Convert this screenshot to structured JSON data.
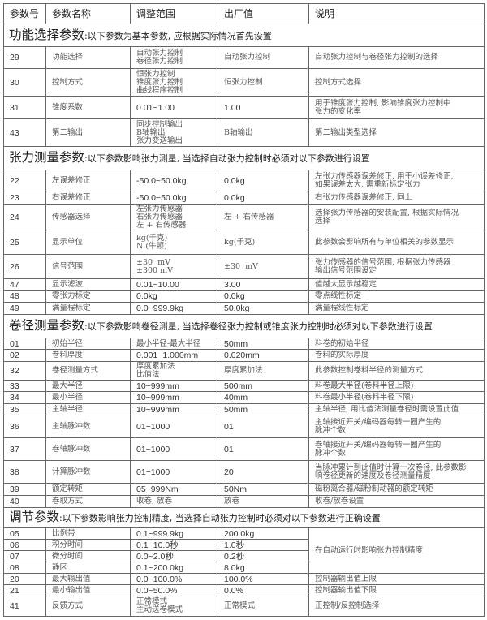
{
  "header": [
    "参数号",
    "参数名称",
    "调整范围",
    "出厂值",
    "说明"
  ],
  "sections": [
    {
      "title": "功能选择参数",
      "desc": ":以下参数为基本参数, 应根据实际情况首先设置",
      "rows": [
        {
          "no": "29",
          "name": "功能选择",
          "range": [
            "自动张力控制",
            "卷径张力控制"
          ],
          "default": [
            "自动张力控制"
          ],
          "desc": [
            "自动张力控制与卷径张力控制的选择"
          ]
        },
        {
          "no": "30",
          "name": "控制方式",
          "range": [
            "恒张力控制",
            "锥度张力控制",
            "曲线程序控制"
          ],
          "default": [
            "恒张力控制"
          ],
          "desc": [
            "控制方式选择"
          ]
        },
        {
          "no": "31",
          "name": "锥度系数",
          "range": [
            "0.01~1.00"
          ],
          "default": [
            "1.00"
          ],
          "desc": [
            "用于锥度张力控制, 影响锥度张力控制中",
            "张力的变化率"
          ]
        },
        {
          "no": "43",
          "name": "第二输出",
          "range": [
            "同步控制输出",
            "B轴输出",
            "张力变送输出"
          ],
          "default": [
            "B轴输出"
          ],
          "desc": [
            "第二输出类型选择"
          ]
        }
      ]
    },
    {
      "title": "张力测量参数",
      "desc": ":以下参数影响张力测量, 当选择自动张力控制时必须对以下参数进行设置",
      "rows": [
        {
          "no": "22",
          "name": "左误差修正",
          "range": [
            "-50.0~50.0kg"
          ],
          "default": [
            "0.0kg"
          ],
          "desc": [
            "左张力传感器误差修正, 用于小误差修正,",
            "如果误差太大, 需重新标定张力"
          ]
        },
        {
          "no": "23",
          "name": "右误差修正",
          "range": [
            "-50.0~50.0kg"
          ],
          "default": [
            "0.0kg"
          ],
          "desc": [
            "右张力传感器误差修正, 同上"
          ]
        },
        {
          "no": "24",
          "name": "传感器选择",
          "range": [
            "左张力传感器",
            "右张力传感器",
            "左 + 右传感器"
          ],
          "default": [
            "左 + 右传感器"
          ],
          "desc": [
            "选择张力传感器的安装配置, 根据实际情况",
            "选择"
          ]
        },
        {
          "no": "25",
          "name": "显示单位",
          "range": [
            "kg(千克)",
            "N (牛顿)"
          ],
          "default": [
            "kg(千克)"
          ],
          "desc": [
            "此参数会影响所有与单位相关的参数显示"
          ]
        },
        {
          "no": "26",
          "name": "信号范围",
          "range": [
            "±30  mV",
            "±300 mV"
          ],
          "default": [
            "±30  mV"
          ],
          "desc": [
            "张力传感器的信号范围, 根据张力传感器",
            "输出信号范围设定"
          ]
        },
        {
          "no": "47",
          "name": "显示滤波",
          "range": [
            "0.01~10.00"
          ],
          "default": [
            "3.00"
          ],
          "desc": [
            "值越大显示越稳定"
          ]
        },
        {
          "no": "48",
          "name": "零张力标定",
          "range": [
            "0.0kg"
          ],
          "default": [
            "0.0kg"
          ],
          "desc": [
            "零点线性标定"
          ]
        },
        {
          "no": "49",
          "name": "满量程标定",
          "range": [
            "0.0~999.9kg"
          ],
          "default": [
            "50.0kg"
          ],
          "desc": [
            "满量程线性标定"
          ]
        }
      ]
    },
    {
      "title": "卷径测量参数",
      "desc": ":以下参数影响卷径测量, 当选择卷径张力控制或锥度张力控制时必须对以下参数进行设置",
      "rows": [
        {
          "no": "01",
          "name": "初始半径",
          "range": [
            "最小半径-最大半径"
          ],
          "default": [
            "50mm"
          ],
          "desc": [
            "料卷的初始半径"
          ]
        },
        {
          "no": "02",
          "name": "卷料厚度",
          "range": [
            "0.001~1.000mm"
          ],
          "default": [
            "0.020mm"
          ],
          "desc": [
            "卷料的实际厚度"
          ]
        },
        {
          "no": "32",
          "name": "卷径测量方式",
          "range": [
            "厚度累加法",
            "比值法"
          ],
          "default": [
            "厚度累加法"
          ],
          "desc": [
            "此参数控制卷料半径的测量方式"
          ]
        },
        {
          "no": "33",
          "name": "最大半径",
          "range": [
            "10~999mm"
          ],
          "default": [
            "500mm"
          ],
          "desc": [
            "料卷最大半径(卷料半径上限)"
          ]
        },
        {
          "no": "34",
          "name": "最小半径",
          "range": [
            "10~999mm"
          ],
          "default": [
            "40mm"
          ],
          "desc": [
            "料卷最小半径(卷料半径下限)"
          ]
        },
        {
          "no": "35",
          "name": "主轴半径",
          "range": [
            "10~999mm"
          ],
          "default": [
            "50mm"
          ],
          "desc": [
            "主轴半径, 用比值法测量卷径时需设置此值"
          ]
        },
        {
          "no": "36",
          "name": "主轴脉冲数",
          "range": [
            "01~1000"
          ],
          "default": [
            "01"
          ],
          "desc": [
            "主轴接近开关/编码器每转一圈产生的",
            "脉冲个数"
          ]
        },
        {
          "no": "37",
          "name": "卷轴脉冲数",
          "range": [
            "01~1000"
          ],
          "default": [
            "01"
          ],
          "desc": [
            "卷轴接近开关/编码器每转一圈产生的",
            "脉冲个数"
          ]
        },
        {
          "no": "38",
          "name": "计算脉冲数",
          "range": [
            "01~1000"
          ],
          "default": [
            "20"
          ],
          "desc": [
            "当脉冲累计到此值时计算一次卷径, 此参数影",
            "响卷径更新的速度及卷径测量精度"
          ]
        },
        {
          "no": "39",
          "name": "额定转矩",
          "range": [
            "05~999Nm"
          ],
          "default": [
            "50Nm"
          ],
          "desc": [
            "磁粉离合器/磁粉制动器的额定转矩"
          ]
        },
        {
          "no": "40",
          "name": "卷取方式",
          "range": [
            "收卷, 放卷"
          ],
          "default": [
            "放卷"
          ],
          "desc": [
            "收卷/放卷设置"
          ]
        }
      ]
    },
    {
      "title": "调节参数",
      "desc": ":以下参数影响张力控制精度, 当选择自动张力控制时必须对以下参数进行正确设置",
      "rows": [
        {
          "no": "05",
          "name": "比例带",
          "range": [
            "0.1~999.9kg"
          ],
          "default": [
            "200.0kg"
          ],
          "desc": [
            "在自动运行时影响张力控制精度"
          ],
          "desc_rowspan": 4
        },
        {
          "no": "06",
          "name": "积分时间",
          "range": [
            "0.1~10.0秒"
          ],
          "default": [
            "1.0秒"
          ],
          "desc": null
        },
        {
          "no": "07",
          "name": "微分时间",
          "range": [
            "0.0~2.0秒"
          ],
          "default": [
            "0.2秒"
          ],
          "desc": null
        },
        {
          "no": "08",
          "name": "静区",
          "range": [
            "0.1~200.0kg"
          ],
          "default": [
            "8.0kg"
          ],
          "desc": null
        },
        {
          "no": "20",
          "name": "最大输出值",
          "range": [
            "0.0~100.0%"
          ],
          "default": [
            "100.0%"
          ],
          "desc": [
            "控制器输出值上限"
          ]
        },
        {
          "no": "21",
          "name": "最小输出值",
          "range": [
            "0.0~50.0%"
          ],
          "default": [
            "0.0%"
          ],
          "desc": [
            "控制器输出值下限"
          ]
        },
        {
          "no": "41",
          "name": "反馈方式",
          "range": [
            "正常模式",
            "主动送卷模式"
          ],
          "default": [
            "正常模式"
          ],
          "desc": [
            "正控制/反控制选择"
          ]
        }
      ]
    }
  ]
}
